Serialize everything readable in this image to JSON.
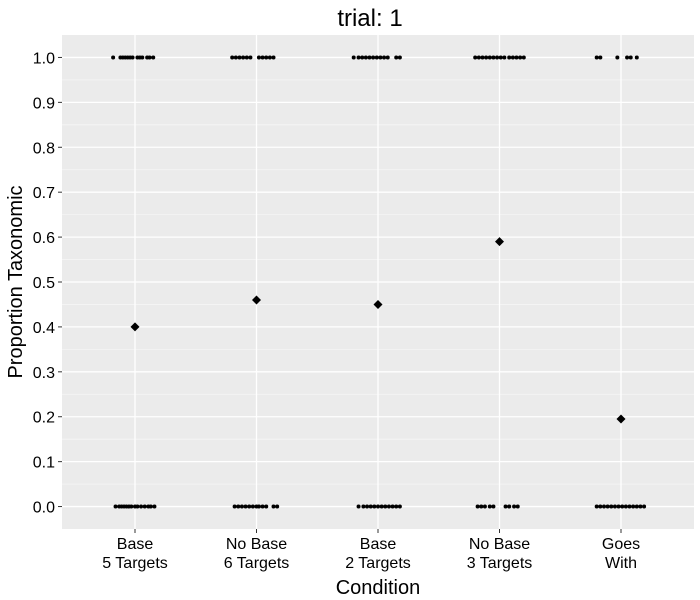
{
  "chart_data": {
    "type": "scatter",
    "title": "trial: 1",
    "xlabel": "Condition",
    "ylabel": "Proportion Taxonomic",
    "ylim": [
      -0.05,
      1.05
    ],
    "y_ticks": [
      "0.0",
      "0.1",
      "0.2",
      "0.3",
      "0.4",
      "0.5",
      "0.6",
      "0.7",
      "0.8",
      "0.9",
      "1.0"
    ],
    "grid": true,
    "categories": [
      {
        "line1": "Base",
        "line2": "5 Targets"
      },
      {
        "line1": "No Base",
        "line2": "6 Targets"
      },
      {
        "line1": "Base",
        "line2": "2 Targets"
      },
      {
        "line1": "No Base",
        "line2": "3 Targets"
      },
      {
        "line1": "Goes",
        "line2": "With"
      }
    ],
    "means": [
      0.4,
      0.46,
      0.45,
      0.59,
      0.195
    ],
    "jitter_points": [
      {
        "ones": [
          -0.18,
          -0.12,
          -0.1,
          -0.08,
          -0.06,
          -0.04,
          -0.02,
          0.02,
          0.04,
          0.06,
          0.1,
          0.12,
          0.15
        ],
        "zeros": [
          -0.16,
          -0.13,
          -0.11,
          -0.09,
          -0.07,
          -0.05,
          -0.03,
          0.0,
          0.02,
          0.05,
          0.08,
          0.11,
          0.13,
          0.16
        ]
      },
      {
        "ones": [
          -0.2,
          -0.17,
          -0.14,
          -0.11,
          -0.08,
          -0.05,
          0.02,
          0.05,
          0.08,
          0.11,
          0.14
        ],
        "zeros": [
          -0.18,
          -0.15,
          -0.12,
          -0.09,
          -0.06,
          -0.03,
          0.0,
          0.02,
          0.05,
          0.08,
          0.14,
          0.17
        ]
      },
      {
        "ones": [
          -0.2,
          -0.16,
          -0.13,
          -0.1,
          -0.07,
          -0.04,
          -0.01,
          0.02,
          0.05,
          0.08,
          0.15,
          0.18
        ],
        "zeros": [
          -0.16,
          -0.12,
          -0.09,
          -0.06,
          -0.03,
          0.0,
          0.03,
          0.06,
          0.09,
          0.12,
          0.15,
          0.18
        ]
      },
      {
        "ones": [
          -0.2,
          -0.17,
          -0.14,
          -0.11,
          -0.08,
          -0.05,
          -0.02,
          0.01,
          0.04,
          0.08,
          0.11,
          0.14,
          0.17,
          0.2
        ],
        "zeros": [
          -0.18,
          -0.15,
          -0.12,
          -0.08,
          -0.05,
          0.05,
          0.08,
          0.12,
          0.15
        ]
      },
      {
        "ones": [
          -0.2,
          -0.17,
          -0.03,
          0.05,
          0.08,
          0.13
        ],
        "zeros": [
          -0.2,
          -0.17,
          -0.14,
          -0.11,
          -0.08,
          -0.05,
          -0.02,
          0.01,
          0.04,
          0.07,
          0.1,
          0.13,
          0.16,
          0.19
        ]
      }
    ]
  },
  "colors": {
    "panel": "#EBEBEB",
    "grid_major": "#FFFFFF",
    "grid_minor": "#F5F5F5",
    "point": "#000000",
    "axis_tick": "#333333",
    "text": "#000000"
  }
}
